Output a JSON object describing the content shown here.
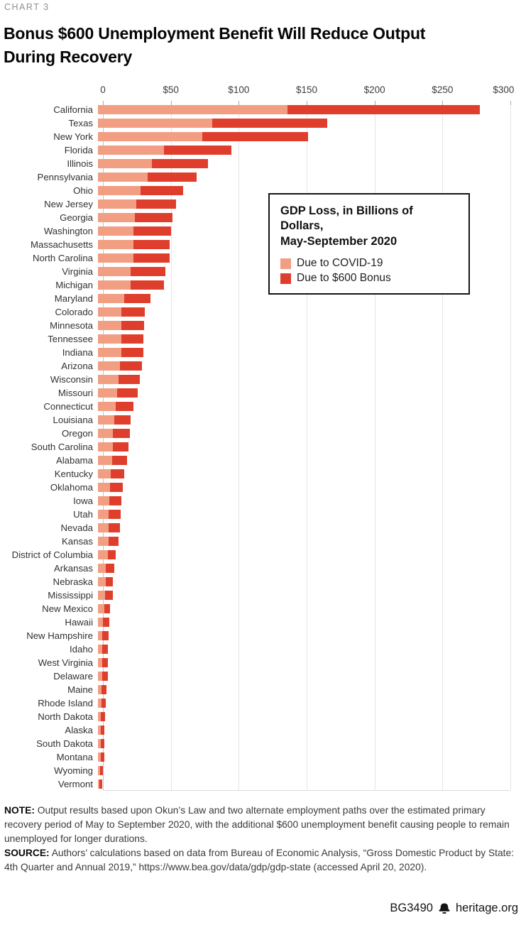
{
  "kicker": "CHART 3",
  "title_lines": [
    "Bonus $600 Unemployment Benefit Will Reduce Output",
    "During Recovery"
  ],
  "chart_data": {
    "type": "bar",
    "orientation": "horizontal",
    "stacked": true,
    "unit": "billions of dollars",
    "x_axis": {
      "min": 0,
      "max": 300,
      "grid": true,
      "ticks": [
        {
          "value": 0,
          "label": "0"
        },
        {
          "value": 50,
          "label": "$50"
        },
        {
          "value": 100,
          "label": "$100"
        },
        {
          "value": 150,
          "label": "$150"
        },
        {
          "value": 200,
          "label": "$200"
        },
        {
          "value": 250,
          "label": "$250"
        },
        {
          "value": 300,
          "label": "$300"
        }
      ]
    },
    "legend": {
      "title_lines": [
        "GDP Loss, in Billions of Dollars,",
        "May-September 2020"
      ],
      "position": "inside-top-right"
    },
    "categories": [
      "California",
      "Texas",
      "New York",
      "Florida",
      "Illinois",
      "Pennsylvania",
      "Ohio",
      "New Jersey",
      "Georgia",
      "Washington",
      "Massachusetts",
      "North Carolina",
      "Virginia",
      "Michigan",
      "Maryland",
      "Colorado",
      "Minnesota",
      "Tennessee",
      "Indiana",
      "Arizona",
      "Wisconsin",
      "Missouri",
      "Connecticut",
      "Louisiana",
      "Oregon",
      "South Carolina",
      "Alabama",
      "Kentucky",
      "Oklahoma",
      "Iowa",
      "Utah",
      "Nevada",
      "Kansas",
      "District of Columbia",
      "Arkansas",
      "Nebraska",
      "Mississippi",
      "New Mexico",
      "Hawaii",
      "New Hampshire",
      "Idaho",
      "West Virginia",
      "Delaware",
      "Maine",
      "Rhode Island",
      "North Dakota",
      "Alaska",
      "South Dakota",
      "Montana",
      "Wyoming",
      "Vermont"
    ],
    "series": [
      {
        "name": "Due to COVID-19",
        "color": "#F29E83",
        "values": [
          138,
          83,
          76,
          48,
          39,
          36,
          31,
          28,
          27,
          26,
          26,
          26,
          24,
          24,
          19,
          17,
          17,
          17,
          17,
          16,
          15,
          14,
          13,
          12,
          11,
          11,
          10.5,
          9.5,
          9,
          8.5,
          8,
          8,
          7.5,
          7,
          5.5,
          5.5,
          5,
          4.5,
          3.5,
          3,
          3,
          3,
          3,
          2.5,
          2.5,
          2,
          2,
          2,
          2,
          1.5,
          1
        ]
      },
      {
        "name": "Due to $600 Bonus",
        "color": "#E03E2D",
        "values": [
          140,
          84,
          77,
          49,
          41,
          36,
          31,
          29,
          27,
          27,
          26,
          26,
          25,
          24,
          19,
          17,
          16.5,
          16,
          16,
          16,
          15.5,
          15,
          13,
          11.5,
          12,
          11,
          10.5,
          9.5,
          9,
          8.5,
          8.5,
          8,
          7.5,
          6,
          6.5,
          5.5,
          6,
          4.5,
          5,
          4.5,
          4,
          4,
          4,
          3.5,
          3,
          3,
          2.5,
          2.5,
          2.5,
          2,
          2
        ]
      }
    ]
  },
  "notes": {
    "note_label": "NOTE:",
    "note_text": "Output results based upon Okun’s Law and two alternate employment paths over the estimated primary recovery period of May to September 2020, with the additional $600 unemployment benefit causing people to remain unemployed for longer durations.",
    "source_label": "SOURCE:",
    "source_text": "Authors’ calculations based on data from Bureau of Economic Analysis, “Gross Domestic Product by State: 4th Quarter and Annual 2019,” https://www.bea.gov/data/gdp/gdp-state (accessed April 20, 2020)."
  },
  "footer": {
    "doc_id": "BG3490",
    "site": "heritage.org",
    "logo": "heritage-bell"
  }
}
